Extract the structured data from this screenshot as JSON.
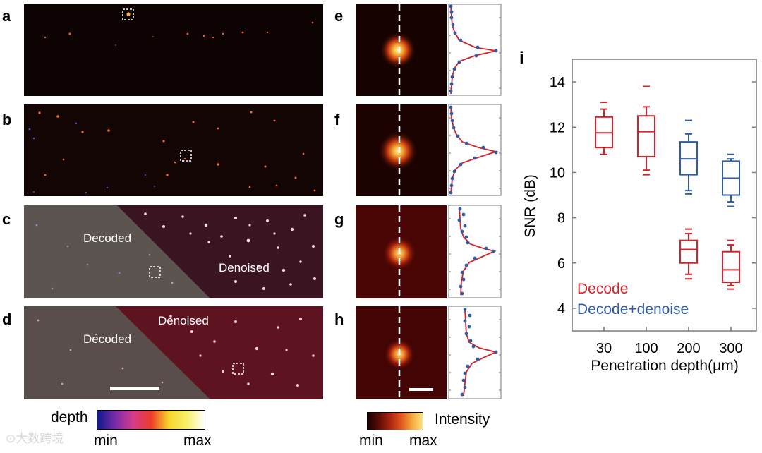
{
  "panels": {
    "a": "a",
    "b": "b",
    "c": "c",
    "d": "d",
    "e": "e",
    "f": "f",
    "g": "g",
    "h": "h",
    "i": "i"
  },
  "overlays": {
    "decoded": "Decoded",
    "denoised": "Denoised"
  },
  "depth_bar": {
    "title": "depth",
    "min": "min",
    "max": "max",
    "colors": [
      "#0d1a8a",
      "#7a2aa8",
      "#d43d8c",
      "#ec3b2a",
      "#f6d52a",
      "#f6f06a",
      "#ffffff"
    ]
  },
  "intensity_bar": {
    "title": "Intensity",
    "min": "min",
    "max": "max",
    "colors": [
      "#1a0000",
      "#5a0b06",
      "#a8230f",
      "#e0521c",
      "#f3a63a",
      "#fbe680"
    ]
  },
  "watermark": "大数跨境",
  "colors": {
    "decode": "#d4232a",
    "decode_denoise": "#2e5ca8"
  },
  "chart_data": {
    "type": "box",
    "title": "",
    "xlabel": "Penetration depth(μm)",
    "ylabel": "SNR (dB)",
    "categories": [
      "30",
      "100",
      "200",
      "300"
    ],
    "ylim": [
      3,
      15
    ],
    "yticks": [
      "4",
      "6",
      "8",
      "10",
      "12",
      "14"
    ],
    "legend": [
      "Decode",
      "Decode+denoise"
    ],
    "boxes": [
      {
        "series": "Decode",
        "category": "30",
        "whisker_low": 10.8,
        "q1": 11.1,
        "median": 11.75,
        "q3": 12.45,
        "whisker_high": 12.8,
        "outliers": [
          13.1
        ]
      },
      {
        "series": "Decode",
        "category": "100",
        "whisker_low": 10.1,
        "q1": 10.7,
        "median": 11.8,
        "q3": 12.5,
        "whisker_high": 12.9,
        "outliers": [
          9.9,
          13.8
        ]
      },
      {
        "series": "Decode+denoise",
        "category": "200",
        "whisker_low": 9.2,
        "q1": 9.9,
        "median": 10.6,
        "q3": 11.35,
        "whisker_high": 11.7,
        "outliers": [
          9.05,
          12.3
        ]
      },
      {
        "series": "Decode",
        "category": "200",
        "whisker_low": 5.5,
        "q1": 6.0,
        "median": 6.6,
        "q3": 7.0,
        "whisker_high": 7.3,
        "outliers": [
          5.3,
          7.5
        ]
      },
      {
        "series": "Decode+denoise",
        "category": "300",
        "whisker_low": 8.7,
        "q1": 9.0,
        "median": 9.75,
        "q3": 10.5,
        "whisker_high": 10.6,
        "outliers": [
          8.5,
          10.8
        ]
      },
      {
        "series": "Decode",
        "category": "300",
        "whisker_low": 5.0,
        "q1": 5.15,
        "median": 5.7,
        "q3": 6.5,
        "whisker_high": 6.8,
        "outliers": [
          4.85,
          7.0
        ]
      }
    ]
  }
}
